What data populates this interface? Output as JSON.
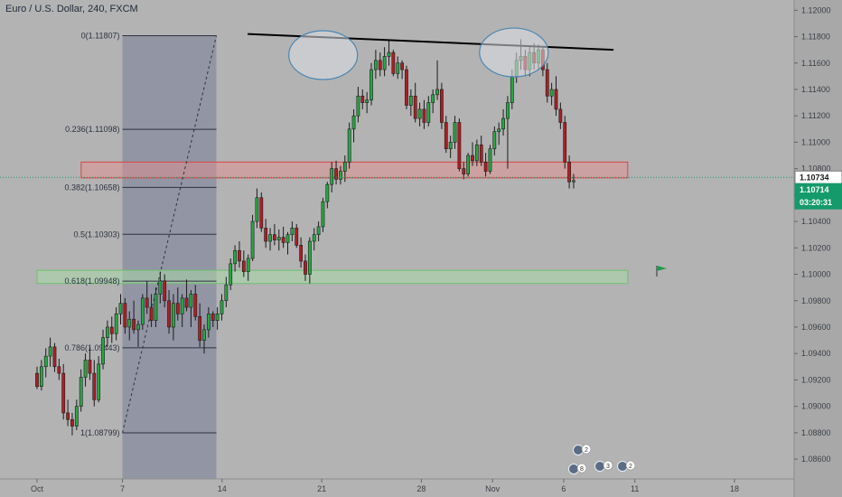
{
  "header": {
    "symbol_title": "Euro / U.S. Dollar, 240, FXCM"
  },
  "colors": {
    "background": "#b3b3b3",
    "axis_panel": "#a8a8a8",
    "up_candle": "#27a844",
    "down_candle": "#b01e24",
    "fib_box": "#8c8fa1",
    "resistance_zone": "#e88c8c",
    "support_zone": "#a8d8a8",
    "trendline": "#000000",
    "price_tag": "#159a6c",
    "highlight_tag": "#ffffff"
  },
  "price_tags": {
    "last_price": "1.10734",
    "current_price": "1.10714",
    "countdown": "03:20:31"
  },
  "chart_data": {
    "type": "candlestick",
    "title": "Euro / U.S. Dollar, 240, FXCM",
    "ylim": [
      1.0845,
      1.1205
    ],
    "y_ticks": [
      "1.12000",
      "1.11800",
      "1.11600",
      "1.11400",
      "1.11200",
      "1.11000",
      "1.10800",
      "1.10600",
      "1.10400",
      "1.10200",
      "1.10000",
      "1.09800",
      "1.09600",
      "1.09400",
      "1.09200",
      "1.09000",
      "1.08800",
      "1.08600"
    ],
    "x_ticks": [
      {
        "label": "Oct",
        "day": 0
      },
      {
        "label": "7",
        "day": 6
      },
      {
        "label": "14",
        "day": 13
      },
      {
        "label": "21",
        "day": 20
      },
      {
        "label": "28",
        "day": 27
      },
      {
        "label": "Nov",
        "day": 32
      },
      {
        "label": "6",
        "day": 37
      },
      {
        "label": "11",
        "day": 42
      },
      {
        "label": "18",
        "day": 49
      }
    ],
    "fibonacci": {
      "day_start": 6,
      "day_end": 12.6,
      "levels": [
        {
          "label": "0(1.11807)",
          "price": 1.11807
        },
        {
          "label": "0.236(1.11098)",
          "price": 1.11098
        },
        {
          "label": "0.382(1.10658)",
          "price": 1.10658
        },
        {
          "label": "0.5(1.10303)",
          "price": 1.10303
        },
        {
          "label": "0.618(1.09948)",
          "price": 1.09948
        },
        {
          "label": "0.786(1.09443)",
          "price": 1.09443
        },
        {
          "label": "1(1.08799)",
          "price": 1.08799
        }
      ]
    },
    "resistance_zone": {
      "day_start": 3.1,
      "day_end": 41.5,
      "low": 1.1073,
      "high": 1.1085
    },
    "support_zone": {
      "day_start": 0,
      "day_end": 41.5,
      "low": 1.0993,
      "high": 1.1003
    },
    "trendline": {
      "day_start": 14.8,
      "price_start": 1.1182,
      "day_end": 40.5,
      "price_end": 1.117
    },
    "ellipses": [
      {
        "day": 20.1,
        "price": 1.1166
      },
      {
        "day": 33.5,
        "price": 1.1168
      }
    ],
    "events": [
      {
        "day": 37.9,
        "count": "2"
      },
      {
        "day": 37.9,
        "count": "8"
      },
      {
        "day": 40.3,
        "count": "3"
      },
      {
        "day": 42.3,
        "count": "2"
      }
    ],
    "candles": [
      [
        1.0925,
        1.093,
        1.0913,
        1.0915
      ],
      [
        1.0915,
        1.0935,
        1.0912,
        1.093
      ],
      [
        1.093,
        1.0944,
        1.0922,
        1.0938
      ],
      [
        1.0938,
        1.0952,
        1.093,
        1.0945
      ],
      [
        1.0945,
        1.0948,
        1.0926,
        1.093
      ],
      [
        1.093,
        1.0936,
        1.092,
        1.0925
      ],
      [
        1.0925,
        1.0932,
        1.089,
        1.0895
      ],
      [
        1.0895,
        1.0905,
        1.0885,
        1.089
      ],
      [
        1.089,
        1.0895,
        1.0878,
        1.0885
      ],
      [
        1.0885,
        1.0905,
        1.0882,
        1.09
      ],
      [
        1.09,
        1.0928,
        1.0896,
        1.0922
      ],
      [
        1.0922,
        1.094,
        1.0915,
        1.0935
      ],
      [
        1.0935,
        1.0945,
        1.092,
        1.0925
      ],
      [
        1.0925,
        1.0935,
        1.09,
        1.0905
      ],
      [
        1.0905,
        1.0938,
        1.0903,
        1.0932
      ],
      [
        1.0932,
        1.0958,
        1.0928,
        1.0952
      ],
      [
        1.0952,
        1.0965,
        1.0945,
        1.096
      ],
      [
        1.096,
        1.0968,
        1.0948,
        1.0955
      ],
      [
        1.0955,
        1.0975,
        1.095,
        1.097
      ],
      [
        1.097,
        1.0985,
        1.0962,
        1.0978
      ],
      [
        1.0978,
        1.0982,
        1.0955,
        1.096
      ],
      [
        1.096,
        1.0972,
        1.095,
        1.0966
      ],
      [
        1.0966,
        1.098,
        1.0955,
        1.0958
      ],
      [
        1.0958,
        1.0965,
        1.0945,
        1.0962
      ],
      [
        1.0962,
        1.0985,
        1.0958,
        1.0982
      ],
      [
        1.0982,
        1.0995,
        1.097,
        1.0975
      ],
      [
        1.0975,
        1.0985,
        1.096,
        1.0965
      ],
      [
        1.0965,
        1.099,
        1.096,
        1.0985
      ],
      [
        1.0985,
        1.1002,
        1.0978,
        1.0995
      ],
      [
        1.0995,
        1.1,
        1.0975,
        1.098
      ],
      [
        1.098,
        1.0988,
        1.0955,
        1.096
      ],
      [
        1.096,
        1.0985,
        1.095,
        1.0978
      ],
      [
        1.0978,
        1.099,
        1.0965,
        1.097
      ],
      [
        1.097,
        1.0985,
        1.096,
        1.0982
      ],
      [
        1.0982,
        1.0996,
        1.0972,
        1.0975
      ],
      [
        1.0975,
        1.0988,
        1.096,
        1.0985
      ],
      [
        1.0985,
        1.0992,
        1.0965,
        1.0968
      ],
      [
        1.0968,
        1.0978,
        1.0945,
        1.095
      ],
      [
        1.095,
        1.0962,
        1.094,
        1.0958
      ],
      [
        1.0958,
        1.0975,
        1.0952,
        1.097
      ],
      [
        1.097,
        1.0972,
        1.096,
        1.0965
      ],
      [
        1.0965,
        1.0975,
        1.0958,
        1.097
      ],
      [
        1.097,
        1.0985,
        1.0965,
        1.098
      ],
      [
        1.098,
        1.0998,
        1.0975,
        1.0992
      ],
      [
        1.0992,
        1.1012,
        1.0988,
        1.1008
      ],
      [
        1.1008,
        1.1022,
        1.1002,
        1.1018
      ],
      [
        1.1018,
        1.1025,
        1.1005,
        1.101
      ],
      [
        1.101,
        1.1018,
        1.0998,
        1.1002
      ],
      [
        1.1002,
        1.1015,
        1.0995,
        1.1012
      ],
      [
        1.1012,
        1.1045,
        1.101,
        1.104
      ],
      [
        1.104,
        1.1065,
        1.1035,
        1.1058
      ],
      [
        1.1058,
        1.1062,
        1.1032,
        1.1035
      ],
      [
        1.1035,
        1.1042,
        1.102,
        1.1025
      ],
      [
        1.1025,
        1.1035,
        1.1018,
        1.103
      ],
      [
        1.103,
        1.1038,
        1.1022,
        1.1026
      ],
      [
        1.1026,
        1.1034,
        1.1018,
        1.1028
      ],
      [
        1.1028,
        1.1036,
        1.102,
        1.1024
      ],
      [
        1.1024,
        1.1032,
        1.1015,
        1.103
      ],
      [
        1.103,
        1.104,
        1.1025,
        1.1035
      ],
      [
        1.1035,
        1.1038,
        1.102,
        1.1022
      ],
      [
        1.1022,
        1.1028,
        1.1005,
        1.101
      ],
      [
        1.101,
        1.1015,
        1.0995,
        1.1
      ],
      [
        1.1,
        1.1028,
        1.0993,
        1.1025
      ],
      [
        1.1025,
        1.1035,
        1.1018,
        1.103
      ],
      [
        1.103,
        1.104,
        1.1025,
        1.1036
      ],
      [
        1.1036,
        1.1058,
        1.1032,
        1.1055
      ],
      [
        1.1055,
        1.107,
        1.105,
        1.1068
      ],
      [
        1.1068,
        1.1085,
        1.1062,
        1.108
      ],
      [
        1.108,
        1.1086,
        1.1068,
        1.1072
      ],
      [
        1.1072,
        1.1082,
        1.1068,
        1.1078
      ],
      [
        1.1078,
        1.109,
        1.107,
        1.1085
      ],
      [
        1.1085,
        1.1115,
        1.108,
        1.111
      ],
      [
        1.111,
        1.1125,
        1.11,
        1.112
      ],
      [
        1.112,
        1.1142,
        1.1115,
        1.1135
      ],
      [
        1.1135,
        1.114,
        1.1125,
        1.113
      ],
      [
        1.113,
        1.1138,
        1.1122,
        1.1132
      ],
      [
        1.1132,
        1.116,
        1.1128,
        1.1155
      ],
      [
        1.1155,
        1.117,
        1.1148,
        1.1162
      ],
      [
        1.1162,
        1.1168,
        1.115,
        1.1155
      ],
      [
        1.1155,
        1.1172,
        1.115,
        1.1165
      ],
      [
        1.1165,
        1.1178,
        1.1158,
        1.1168
      ],
      [
        1.1168,
        1.117,
        1.115,
        1.1152
      ],
      [
        1.1152,
        1.1165,
        1.1148,
        1.116
      ],
      [
        1.116,
        1.1162,
        1.1148,
        1.1155
      ],
      [
        1.1155,
        1.1158,
        1.1125,
        1.1128
      ],
      [
        1.1128,
        1.114,
        1.112,
        1.1135
      ],
      [
        1.1135,
        1.1145,
        1.1115,
        1.1118
      ],
      [
        1.1118,
        1.113,
        1.1112,
        1.1125
      ],
      [
        1.1125,
        1.1132,
        1.111,
        1.1115
      ],
      [
        1.1115,
        1.1135,
        1.1112,
        1.113
      ],
      [
        1.113,
        1.114,
        1.1122,
        1.1136
      ],
      [
        1.1136,
        1.1162,
        1.1132,
        1.114
      ],
      [
        1.114,
        1.1145,
        1.111,
        1.1115
      ],
      [
        1.1115,
        1.112,
        1.1092,
        1.1095
      ],
      [
        1.1095,
        1.1105,
        1.1088,
        1.11
      ],
      [
        1.11,
        1.112,
        1.1095,
        1.1115
      ],
      [
        1.1115,
        1.1118,
        1.1078,
        1.108
      ],
      [
        1.108,
        1.1085,
        1.1072,
        1.1076
      ],
      [
        1.1076,
        1.1092,
        1.1074,
        1.109
      ],
      [
        1.109,
        1.11,
        1.1082,
        1.1086
      ],
      [
        1.1086,
        1.1102,
        1.1082,
        1.1098
      ],
      [
        1.1098,
        1.1105,
        1.1082,
        1.1085
      ],
      [
        1.1085,
        1.1092,
        1.1074,
        1.1078
      ],
      [
        1.1078,
        1.1098,
        1.1076,
        1.1095
      ],
      [
        1.1095,
        1.1112,
        1.109,
        1.1108
      ],
      [
        1.1108,
        1.1115,
        1.1098,
        1.111
      ],
      [
        1.111,
        1.1125,
        1.1105,
        1.1118
      ],
      [
        1.1118,
        1.1135,
        1.108,
        1.113
      ],
      [
        1.113,
        1.1155,
        1.1125,
        1.115
      ],
      [
        1.115,
        1.1168,
        1.1145,
        1.1162
      ],
      [
        1.1162,
        1.1178,
        1.1155,
        1.1165
      ],
      [
        1.1165,
        1.117,
        1.115,
        1.1155
      ],
      [
        1.1155,
        1.1172,
        1.115,
        1.1168
      ],
      [
        1.1168,
        1.1175,
        1.1155,
        1.116
      ],
      [
        1.116,
        1.1174,
        1.1155,
        1.117
      ],
      [
        1.117,
        1.1172,
        1.115,
        1.1155
      ],
      [
        1.1155,
        1.116,
        1.113,
        1.1135
      ],
      [
        1.1135,
        1.1145,
        1.1128,
        1.114
      ],
      [
        1.114,
        1.115,
        1.112,
        1.1125
      ],
      [
        1.1125,
        1.113,
        1.111,
        1.1115
      ],
      [
        1.1115,
        1.112,
        1.108,
        1.1085
      ],
      [
        1.1085,
        1.109,
        1.1065,
        1.107
      ],
      [
        1.107,
        1.1076,
        1.1065,
        1.1071
      ]
    ]
  }
}
